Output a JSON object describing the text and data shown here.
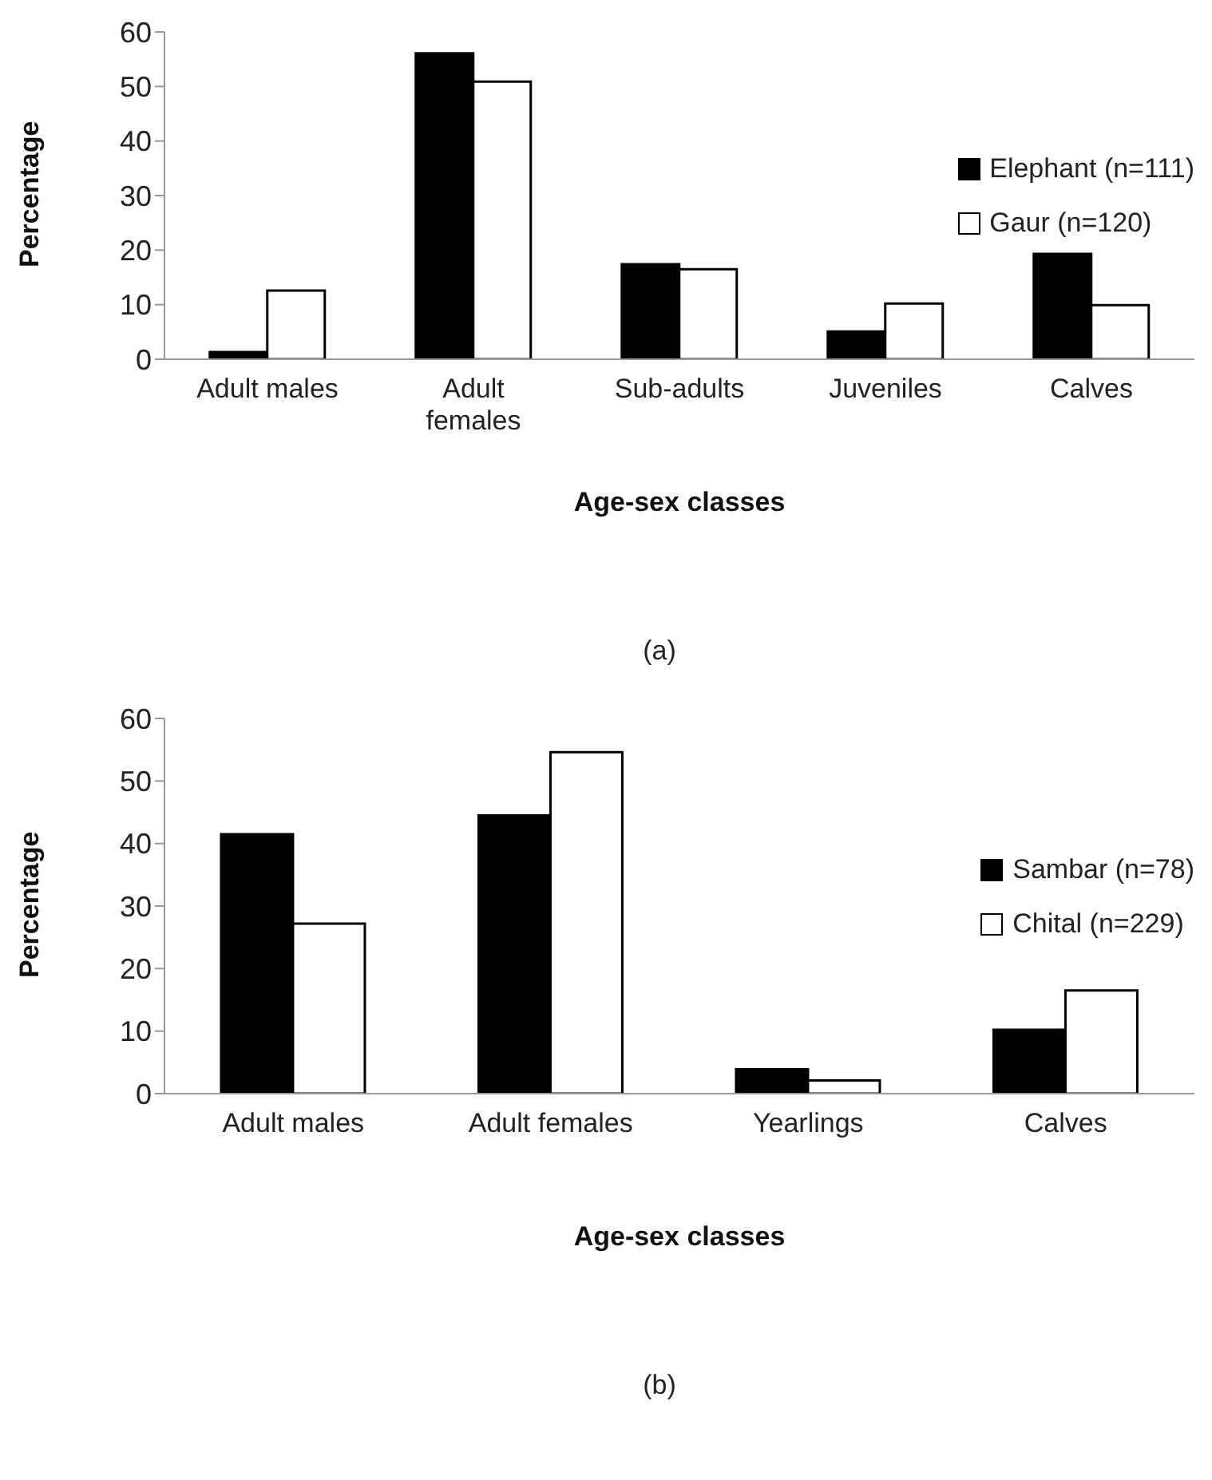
{
  "chart_data": [
    {
      "type": "bar",
      "categories": [
        "Adult males",
        "Adult females",
        "Sub-adults",
        "Juveniles",
        "Calves"
      ],
      "series": [
        {
          "name": "Elephant (n=111)",
          "color": "#000000",
          "values": [
            1.3,
            56.1,
            17.4,
            5.1,
            19.3
          ]
        },
        {
          "name": "Gaur (n=120)",
          "color": "#ffffff",
          "values": [
            12.6,
            50.9,
            16.5,
            10.2,
            9.9
          ]
        }
      ],
      "xlabel": "Age-sex classes",
      "ylabel": "Percentage",
      "ylim": [
        0,
        60
      ],
      "yticks": [
        0,
        10,
        20,
        30,
        40,
        50,
        60
      ],
      "grid": false,
      "legend": "right",
      "annotations": [
        "(a)"
      ]
    },
    {
      "type": "bar",
      "categories": [
        "Adult males",
        "Adult females",
        "Yearlings",
        "Calves"
      ],
      "series": [
        {
          "name": "Sambar (n=78)",
          "color": "#000000",
          "values": [
            41.5,
            44.5,
            3.9,
            10.2
          ]
        },
        {
          "name": "Chital (n=229)",
          "color": "#ffffff",
          "values": [
            27.2,
            54.6,
            2.1,
            16.5
          ]
        }
      ],
      "xlabel": "Age-sex classes",
      "ylabel": "Percentage",
      "ylim": [
        0,
        60
      ],
      "yticks": [
        0,
        10,
        20,
        30,
        40,
        50,
        60
      ],
      "grid": false,
      "legend": "right",
      "annotations": [
        "(b)"
      ]
    }
  ]
}
